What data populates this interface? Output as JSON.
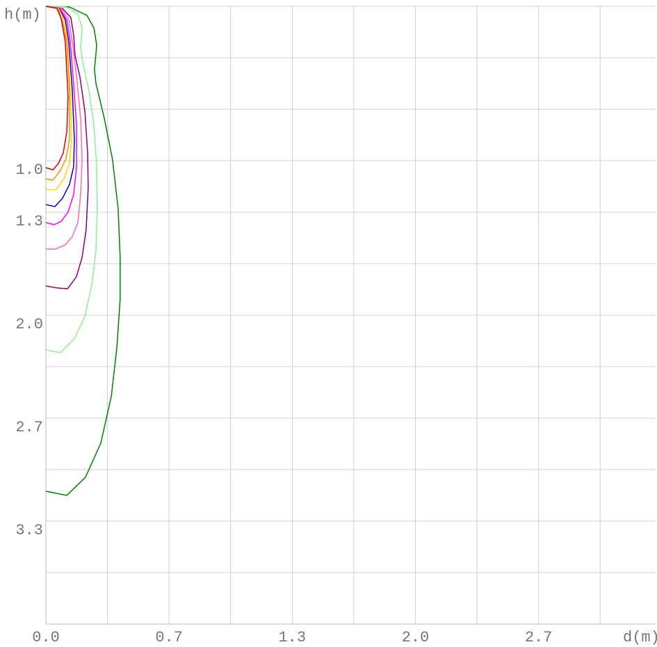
{
  "chart_data": {
    "type": "line",
    "y_label": "h(m)",
    "x_label": "d(m)",
    "xlim": [
      0,
      3.3
    ],
    "ylim": [
      0,
      4
    ],
    "y_inverted": true,
    "grid": true,
    "xticks": [
      {
        "value": 0,
        "label": "0.0"
      },
      {
        "value": 0.6667,
        "label": "0.7"
      },
      {
        "value": 1.3333,
        "label": "1.3"
      },
      {
        "value": 2.0,
        "label": "2.0"
      },
      {
        "value": 2.6667,
        "label": "2.7"
      }
    ],
    "xgrid": [
      0.3333,
      1.0,
      1.6667,
      2.3333,
      3.0
    ],
    "yticks": [
      {
        "value": 1.0,
        "label": "1.0"
      },
      {
        "value": 1.3333,
        "label": "1.3"
      },
      {
        "value": 2.0,
        "label": "2.0"
      },
      {
        "value": 2.6667,
        "label": "2.7"
      },
      {
        "value": 3.3333,
        "label": "3.3"
      }
    ],
    "ygrid": [
      0,
      0.3333,
      0.6667,
      1.6667,
      2.3333,
      3.0,
      3.6667
    ],
    "series": [
      {
        "color": "#008000",
        "x": [
          0,
          0.128,
          0.222,
          0.26,
          0.275,
          0.263,
          0.271,
          0.316,
          0.361,
          0.391,
          0.402,
          0.402,
          0.384,
          0.354,
          0.297,
          0.214,
          0.113,
          0
        ],
        "y": [
          0,
          0.005,
          0.059,
          0.14,
          0.252,
          0.41,
          0.5,
          0.725,
          0.995,
          1.311,
          1.626,
          1.896,
          2.212,
          2.527,
          2.829,
          3.05,
          3.167,
          3.14
        ]
      },
      {
        "color": "#90ee90",
        "x": [
          0,
          0.109,
          0.173,
          0.196,
          0.188,
          0.203,
          0.233,
          0.26,
          0.275,
          0.278,
          0.271,
          0.248,
          0.211,
          0.154,
          0.079,
          0
        ],
        "y": [
          0,
          0.005,
          0.05,
          0.14,
          0.275,
          0.387,
          0.545,
          0.77,
          1.041,
          1.311,
          1.581,
          1.806,
          2.009,
          2.153,
          2.243,
          2.225
        ]
      },
      {
        "color": "#800080",
        "x": [
          0,
          0.09,
          0.135,
          0.15,
          0.158,
          0.184,
          0.211,
          0.226,
          0.229,
          0.218,
          0.196,
          0.165,
          0.117,
          0.06,
          0
        ],
        "y": [
          0,
          0.014,
          0.072,
          0.185,
          0.32,
          0.455,
          0.68,
          0.95,
          1.176,
          1.446,
          1.626,
          1.752,
          1.829,
          1.824,
          1.811
        ]
      },
      {
        "color": "#ff69b4",
        "x": [
          0,
          0.083,
          0.124,
          0.143,
          0.166,
          0.188,
          0.196,
          0.188,
          0.173,
          0.143,
          0.105,
          0.053,
          0
        ],
        "y": [
          0,
          0.014,
          0.086,
          0.23,
          0.455,
          0.725,
          0.995,
          1.221,
          1.401,
          1.491,
          1.545,
          1.572,
          1.572
        ]
      },
      {
        "color": "#ff00ff",
        "x": [
          0,
          0.075,
          0.113,
          0.132,
          0.15,
          0.166,
          0.166,
          0.15,
          0.12,
          0.083,
          0.045,
          0
        ],
        "y": [
          0,
          0.014,
          0.086,
          0.23,
          0.5,
          0.77,
          1.041,
          1.221,
          1.333,
          1.392,
          1.414,
          1.401
        ]
      },
      {
        "color": "#0000cd",
        "x": [
          0,
          0.071,
          0.105,
          0.124,
          0.143,
          0.154,
          0.15,
          0.128,
          0.09,
          0.049,
          0
        ],
        "y": [
          0,
          0.014,
          0.086,
          0.23,
          0.545,
          0.86,
          1.041,
          1.153,
          1.243,
          1.297,
          1.284
        ]
      },
      {
        "color": "#ffd700",
        "x": [
          0,
          0.068,
          0.098,
          0.117,
          0.135,
          0.139,
          0.128,
          0.098,
          0.053,
          0
        ],
        "y": [
          0,
          0.014,
          0.086,
          0.23,
          0.59,
          0.86,
          1.018,
          1.117,
          1.189,
          1.185
        ]
      },
      {
        "color": "#ff8c00",
        "x": [
          0,
          0.064,
          0.09,
          0.113,
          0.128,
          0.128,
          0.109,
          0.079,
          0.038,
          0
        ],
        "y": [
          0,
          0.014,
          0.095,
          0.23,
          0.545,
          0.86,
          0.986,
          1.063,
          1.126,
          1.117
        ]
      },
      {
        "color": "#e00000",
        "x": [
          0,
          0.06,
          0.083,
          0.105,
          0.12,
          0.113,
          0.094,
          0.068,
          0.038,
          0
        ],
        "y": [
          0,
          0.014,
          0.081,
          0.23,
          0.59,
          0.815,
          0.95,
          1.018,
          1.059,
          1.045
        ]
      }
    ]
  }
}
